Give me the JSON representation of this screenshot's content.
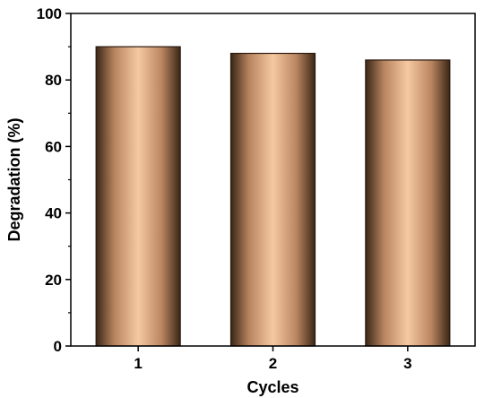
{
  "chart_data": {
    "type": "bar",
    "categories": [
      "1",
      "2",
      "3"
    ],
    "values": [
      90,
      88,
      86
    ],
    "xlabel": "Cycles",
    "ylabel": "Degradation (%)",
    "ylim": [
      0,
      100
    ],
    "yticks": [
      0,
      20,
      40,
      60,
      80,
      100
    ],
    "grid": false,
    "legend": "none",
    "colors": {
      "bar_edge": "#2a1a10",
      "bar_dark": "#3a2616",
      "bar_mid": "#b98560",
      "bar_light": "#f6c9a2",
      "axis": "#000000"
    }
  }
}
